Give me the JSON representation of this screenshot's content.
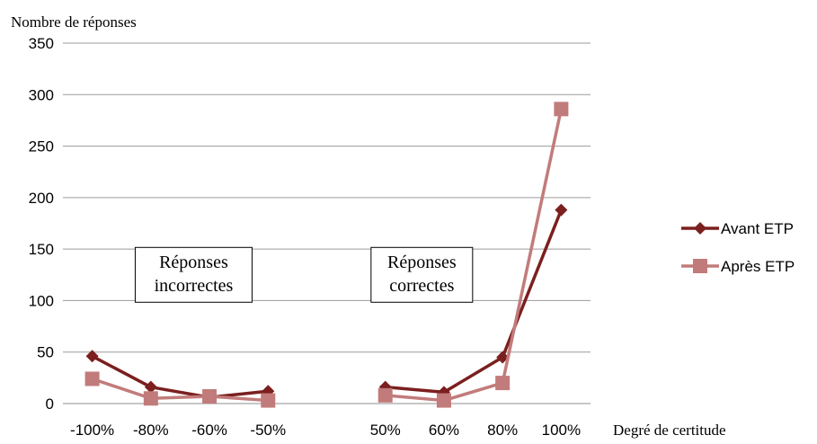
{
  "chart_data": {
    "type": "line",
    "ylabel": "Nombre de réponses",
    "xlabel": "Degré de certitude",
    "categories": [
      "-100%",
      "-80%",
      "-60%",
      "-50%",
      "",
      "50%",
      "60%",
      "80%",
      "100%"
    ],
    "ylim": [
      0,
      350
    ],
    "yticks": [
      "0",
      "50",
      "100",
      "150",
      "200",
      "250",
      "300",
      "350"
    ],
    "grid": true,
    "legend_position": "right",
    "series": [
      {
        "name": "Avant ETP",
        "color": "#7b1f1f",
        "marker": "diamond",
        "values": [
          46,
          16,
          6,
          12,
          null,
          16,
          11,
          45,
          188
        ]
      },
      {
        "name": "Après ETP",
        "color": "#c27b7b",
        "marker": "square",
        "values": [
          24,
          5,
          7,
          3,
          null,
          8,
          3,
          20,
          286
        ]
      }
    ],
    "annotations": [
      {
        "lines": [
          "Réponses",
          "incorrectes"
        ]
      },
      {
        "lines": [
          "Réponses",
          "correctes"
        ]
      }
    ]
  }
}
